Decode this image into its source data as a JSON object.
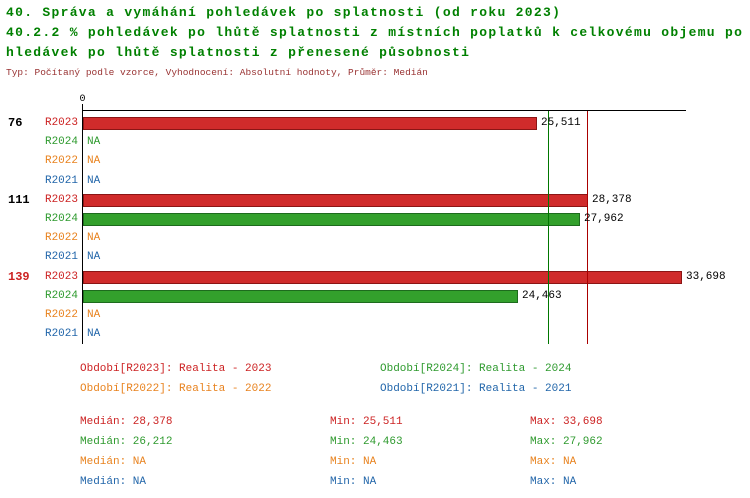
{
  "header": {
    "title_line1": "40. Správa a vymáhání pohledávek po splatnosti (od roku 2023)",
    "title_line2": "40.2.2 % pohledávek po lhůtě splatnosti z místních poplatků k celkovému objemu po",
    "title_line3": "hledávek po lhůtě splatnosti z přenesené působnosti",
    "meta_line": "Typ: Počítaný podle vzorce, Vyhodnocení: Absolutní hodnoty, Průměr: Medián"
  },
  "colors": {
    "title_green": "#008000",
    "meta_red": "#993333",
    "axis_black": "#000000",
    "value_text": "#000000",
    "series": {
      "R2023": {
        "text": "#CC2222",
        "fill": "#D02B2B",
        "border": "#8B1515",
        "median": "#AA0000"
      },
      "R2024": {
        "text": "#2E9A2E",
        "fill": "#33A02C",
        "border": "#1D6B1D",
        "median": "#007700"
      },
      "R2022": {
        "text": "#E8821E",
        "fill": "#E8821E",
        "border": "#A85A10",
        "median": "#C06000"
      },
      "R2021": {
        "text": "#2266AA",
        "fill": "#2266AA",
        "border": "#154466",
        "median": "#004488"
      }
    }
  },
  "chart_data": {
    "type": "bar",
    "orientation": "horizontal",
    "title": "40.2.2 % pohledávek po lhůtě splatnosti z místních poplatků k celkovému objemu pohledávek po lhůtě splatnosti z přenesené působnosti",
    "x_axis": {
      "zero_label": "0",
      "min": 0,
      "max": 33900,
      "grid": false
    },
    "categories": [
      "76",
      "111",
      "139"
    ],
    "series": [
      {
        "name": "R2023",
        "values": [
          25511,
          28378,
          33698
        ]
      },
      {
        "name": "R2024",
        "values": [
          null,
          27962,
          24463
        ]
      },
      {
        "name": "R2022",
        "values": [
          null,
          null,
          null
        ]
      },
      {
        "name": "R2021",
        "values": [
          null,
          null,
          null
        ]
      }
    ],
    "groups": [
      {
        "label": "76",
        "label_color": "#000000",
        "rows": [
          {
            "series": "R2023",
            "value": 25511,
            "display": "25,511"
          },
          {
            "series": "R2024",
            "value": null,
            "display": "NA"
          },
          {
            "series": "R2022",
            "value": null,
            "display": "NA"
          },
          {
            "series": "R2021",
            "value": null,
            "display": "NA"
          }
        ]
      },
      {
        "label": "111",
        "label_color": "#000000",
        "rows": [
          {
            "series": "R2023",
            "value": 28378,
            "display": "28,378"
          },
          {
            "series": "R2024",
            "value": 27962,
            "display": "27,962"
          },
          {
            "series": "R2022",
            "value": null,
            "display": "NA"
          },
          {
            "series": "R2021",
            "value": null,
            "display": "NA"
          }
        ]
      },
      {
        "label": "139",
        "label_color": "#CC2222",
        "rows": [
          {
            "series": "R2023",
            "value": 33698,
            "display": "33,698"
          },
          {
            "series": "R2024",
            "value": 24463,
            "display": "24,463"
          },
          {
            "series": "R2022",
            "value": null,
            "display": "NA"
          },
          {
            "series": "R2021",
            "value": null,
            "display": "NA"
          }
        ]
      }
    ],
    "median_lines": [
      {
        "series": "R2023",
        "value": 28378
      },
      {
        "series": "R2024",
        "value": 26212
      }
    ]
  },
  "legend": {
    "items": [
      {
        "series": "R2023",
        "text": "Období[R2023]: Realita - 2023"
      },
      {
        "series": "R2024",
        "text": "Období[R2024]: Realita - 2024"
      },
      {
        "series": "R2022",
        "text": "Období[R2022]: Realita - 2022"
      },
      {
        "series": "R2021",
        "text": "Období[R2021]: Realita - 2021"
      }
    ]
  },
  "stats": {
    "rows": [
      {
        "series": "R2023",
        "median": "Medián: 28,378",
        "min": "Min: 25,511",
        "max": "Max: 33,698"
      },
      {
        "series": "R2024",
        "median": "Medián: 26,212",
        "min": "Min: 24,463",
        "max": "Max: 27,962"
      },
      {
        "series": "R2022",
        "median": "Medián: NA",
        "min": "Min: NA",
        "max": "Max: NA"
      },
      {
        "series": "R2021",
        "median": "Medián: NA",
        "min": "Min: NA",
        "max": "Max: NA"
      }
    ]
  }
}
